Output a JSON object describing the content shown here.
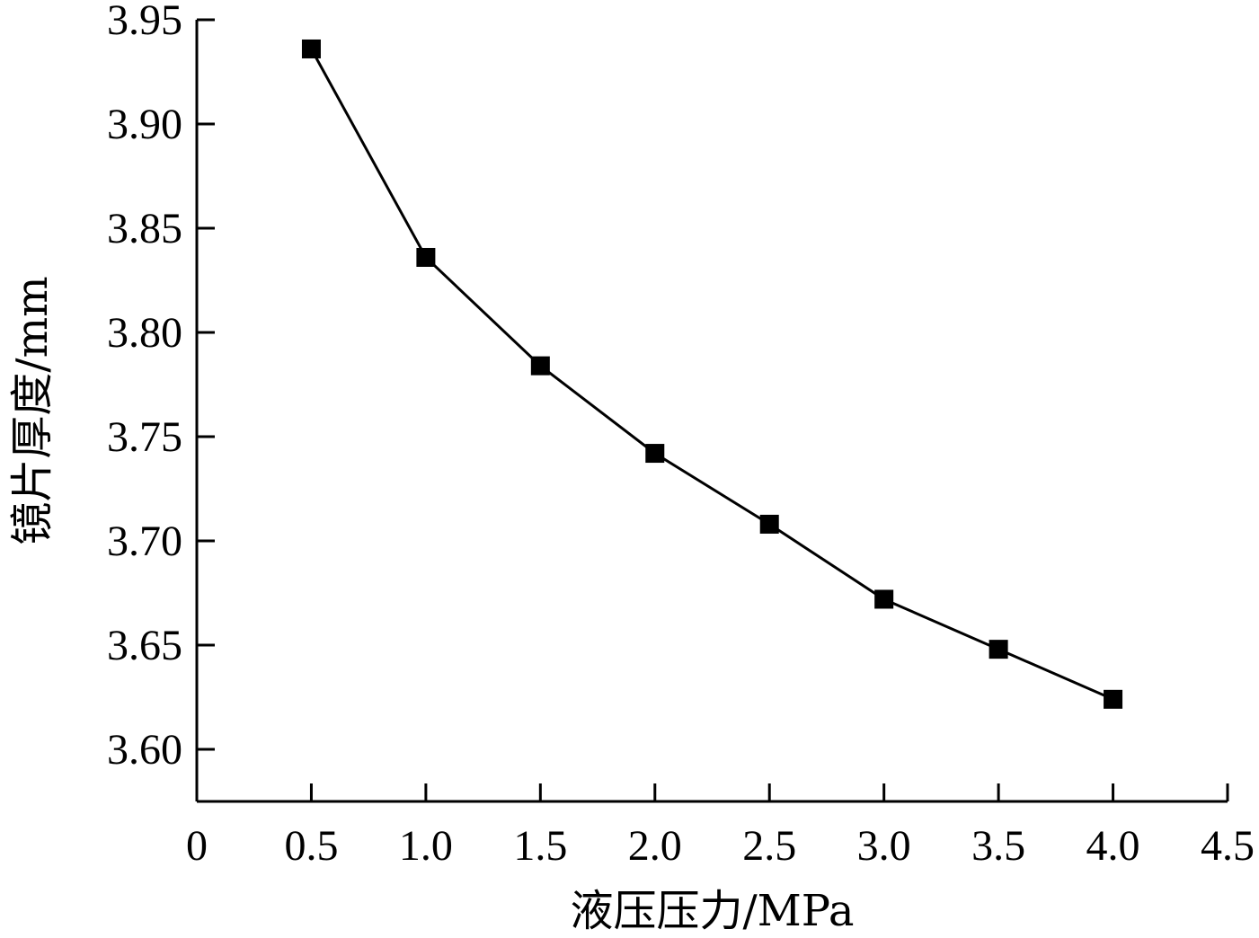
{
  "chart_data": {
    "type": "line",
    "title": "",
    "xlabel": "液压压力/MPa",
    "ylabel": "镜片厚度/mm",
    "xlim": [
      0,
      4.5
    ],
    "ylim": [
      3.575,
      3.95
    ],
    "x_ticks": [
      0,
      0.5,
      1.0,
      1.5,
      2.0,
      2.5,
      3.0,
      3.5,
      4.0,
      4.5
    ],
    "x_tick_labels": [
      "0",
      "0.5",
      "1.0",
      "1.5",
      "2.0",
      "2.5",
      "3.0",
      "3.5",
      "4.0",
      "4.5"
    ],
    "y_ticks": [
      3.6,
      3.65,
      3.7,
      3.75,
      3.8,
      3.85,
      3.9,
      3.95
    ],
    "y_tick_labels": [
      "3.60",
      "3.65",
      "3.70",
      "3.75",
      "3.80",
      "3.85",
      "3.90",
      "3.95"
    ],
    "grid": false,
    "legend": "none",
    "series": [
      {
        "marker": "square",
        "color": "#000000",
        "x": [
          0.5,
          1.0,
          1.5,
          2.0,
          2.5,
          3.0,
          3.5,
          4.0
        ],
        "y": [
          3.936,
          3.836,
          3.784,
          3.742,
          3.708,
          3.672,
          3.648,
          3.624
        ]
      }
    ]
  }
}
